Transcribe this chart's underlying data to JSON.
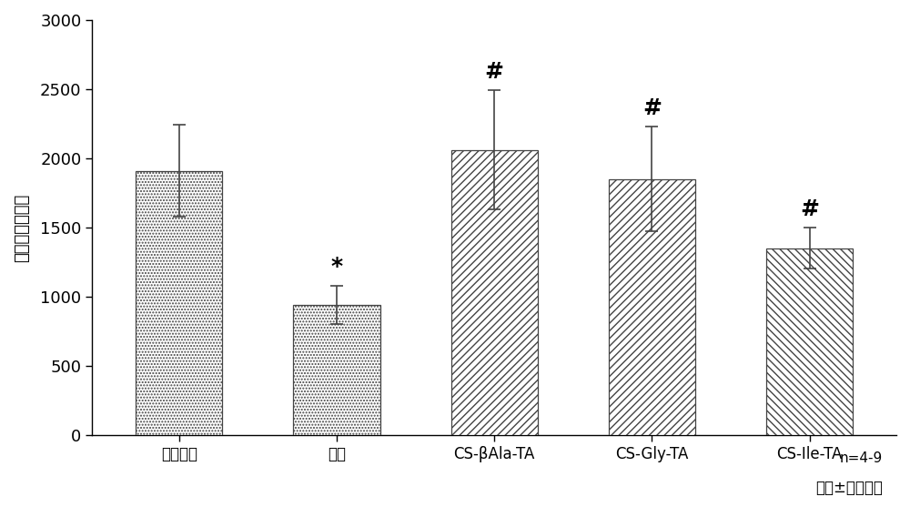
{
  "categories": [
    "假手术组",
    "食盐",
    "CS-βAla-TA",
    "CS-Gly-TA",
    "CS-Ile-TA"
  ],
  "values": [
    1910,
    940,
    2060,
    1850,
    1350
  ],
  "errors": [
    330,
    140,
    430,
    380,
    150
  ],
  "ylabel": "排尿间隔（秒）",
  "ylim": [
    0,
    3000
  ],
  "yticks": [
    0,
    500,
    1000,
    1500,
    2000,
    2500,
    3000
  ],
  "annotations": [
    "",
    "*",
    "#",
    "#",
    "#"
  ],
  "note_line1": "n=4-9",
  "note_line2": "平均±标准偏差",
  "bar_edge_color": "#444444",
  "error_color": "#444444"
}
